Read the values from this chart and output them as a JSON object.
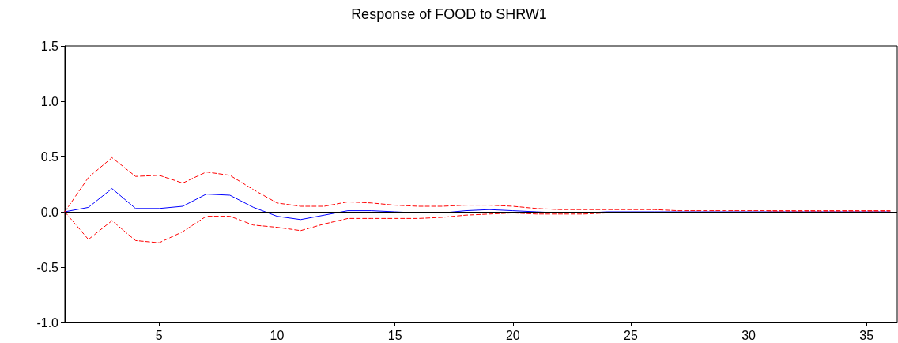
{
  "chart_data": {
    "type": "line",
    "title": "Response of FOOD to SHRW1",
    "x": [
      1,
      2,
      3,
      4,
      5,
      6,
      7,
      8,
      9,
      10,
      11,
      12,
      13,
      14,
      15,
      16,
      17,
      18,
      19,
      20,
      21,
      22,
      23,
      24,
      25,
      26,
      27,
      28,
      29,
      30,
      31,
      32,
      33,
      34,
      35,
      36
    ],
    "series": [
      {
        "color": "#0000ff",
        "line_style": "solid",
        "values": [
          0,
          0.04,
          0.21,
          0.03,
          0.03,
          0.05,
          0.16,
          0.15,
          0.04,
          -0.04,
          -0.07,
          -0.03,
          0.01,
          0.01,
          0,
          -0.01,
          -0.01,
          0.01,
          0.02,
          0.01,
          0,
          -0.01,
          -0.01,
          0,
          0,
          0,
          0,
          0,
          0,
          0,
          0,
          0,
          0,
          0,
          0,
          0
        ]
      },
      {
        "color": "#ff0000",
        "line_style": "dashed",
        "values": [
          0,
          0.31,
          0.49,
          0.32,
          0.33,
          0.26,
          0.36,
          0.33,
          0.2,
          0.08,
          0.05,
          0.05,
          0.09,
          0.08,
          0.06,
          0.05,
          0.05,
          0.06,
          0.06,
          0.05,
          0.03,
          0.02,
          0.02,
          0.02,
          0.02,
          0.02,
          0.01,
          0.01,
          0.01,
          0.01,
          0.01,
          0.01,
          0.01,
          0.01,
          0.01,
          0.01
        ]
      },
      {
        "color": "#ff0000",
        "line_style": "dashed",
        "values": [
          0,
          -0.25,
          -0.08,
          -0.26,
          -0.28,
          -0.18,
          -0.04,
          -0.04,
          -0.12,
          -0.14,
          -0.17,
          -0.11,
          -0.06,
          -0.06,
          -0.06,
          -0.06,
          -0.05,
          -0.03,
          -0.02,
          -0.01,
          -0.02,
          -0.02,
          -0.02,
          -0.01,
          -0.01,
          -0.01,
          -0.01,
          -0.01,
          -0.01,
          -0.01,
          0,
          0,
          0,
          0,
          0,
          0
        ]
      }
    ],
    "xlim": [
      1,
      36.3
    ],
    "xticks": [
      5,
      10,
      15,
      20,
      25,
      30,
      35
    ],
    "ylim": [
      -1,
      1.5
    ],
    "yticks": [
      {
        "value": -1,
        "label": "-1.0"
      },
      {
        "value": -0.5,
        "label": "-0.5"
      },
      {
        "value": 0,
        "label": "0.0"
      },
      {
        "value": 0.5,
        "label": "0.5"
      },
      {
        "value": 1,
        "label": "1.0"
      },
      {
        "value": 1.5,
        "label": "1.5"
      }
    ],
    "ref_lines": [
      {
        "axis": "y",
        "value": 0,
        "color": "#000000",
        "line_style": "solid"
      }
    ],
    "grid": false,
    "marker": "none"
  }
}
